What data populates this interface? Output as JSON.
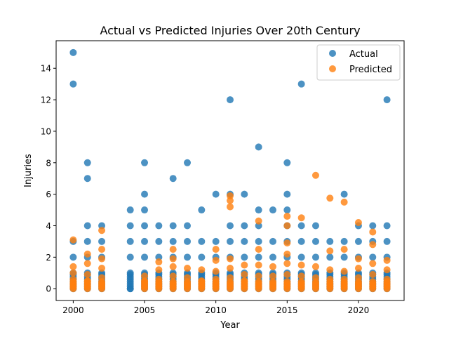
{
  "chart_data": {
    "type": "scatter",
    "title": "Actual vs Predicted Injuries Over 20th Century",
    "xlabel": "Year",
    "ylabel": "Injuries",
    "xlim": [
      1998.8,
      2023.2
    ],
    "ylim": [
      -0.75,
      15.75
    ],
    "xticks": [
      2000,
      2005,
      2010,
      2015,
      2020
    ],
    "yticks": [
      0,
      2,
      4,
      6,
      8,
      10,
      12,
      14
    ],
    "grid": false,
    "legend_position": "top-right",
    "series": [
      {
        "name": "Actual",
        "color": "#1f77b4",
        "points": [
          [
            2000,
            15
          ],
          [
            2000,
            13
          ],
          [
            2000,
            3
          ],
          [
            2000,
            2
          ],
          [
            2000,
            1
          ],
          [
            2001,
            8
          ],
          [
            2001,
            7
          ],
          [
            2001,
            4
          ],
          [
            2001,
            3
          ],
          [
            2001,
            2
          ],
          [
            2001,
            1
          ],
          [
            2002,
            4
          ],
          [
            2002,
            3
          ],
          [
            2002,
            2
          ],
          [
            2002,
            1
          ],
          [
            2004,
            5
          ],
          [
            2004,
            4
          ],
          [
            2004,
            3
          ],
          [
            2004,
            2
          ],
          [
            2004,
            1
          ],
          [
            2004,
            0
          ],
          [
            2005,
            8
          ],
          [
            2005,
            6
          ],
          [
            2005,
            5
          ],
          [
            2005,
            4
          ],
          [
            2005,
            3
          ],
          [
            2005,
            2
          ],
          [
            2005,
            1
          ],
          [
            2006,
            4
          ],
          [
            2006,
            3
          ],
          [
            2006,
            2
          ],
          [
            2006,
            1
          ],
          [
            2007,
            7
          ],
          [
            2007,
            4
          ],
          [
            2007,
            3
          ],
          [
            2007,
            2
          ],
          [
            2007,
            1
          ],
          [
            2008,
            8
          ],
          [
            2008,
            4
          ],
          [
            2008,
            3
          ],
          [
            2008,
            2
          ],
          [
            2008,
            1
          ],
          [
            2009,
            5
          ],
          [
            2009,
            3
          ],
          [
            2009,
            2
          ],
          [
            2009,
            1
          ],
          [
            2010,
            6
          ],
          [
            2010,
            3
          ],
          [
            2010,
            2
          ],
          [
            2010,
            1
          ],
          [
            2011,
            12
          ],
          [
            2011,
            6
          ],
          [
            2011,
            4
          ],
          [
            2011,
            3
          ],
          [
            2011,
            2
          ],
          [
            2011,
            1
          ],
          [
            2012,
            6
          ],
          [
            2012,
            4
          ],
          [
            2012,
            3
          ],
          [
            2012,
            2
          ],
          [
            2012,
            1
          ],
          [
            2013,
            9
          ],
          [
            2013,
            5
          ],
          [
            2013,
            4
          ],
          [
            2013,
            3
          ],
          [
            2013,
            2
          ],
          [
            2013,
            1
          ],
          [
            2014,
            5
          ],
          [
            2014,
            3
          ],
          [
            2014,
            2
          ],
          [
            2014,
            1
          ],
          [
            2015,
            8
          ],
          [
            2015,
            6
          ],
          [
            2015,
            5
          ],
          [
            2015,
            4
          ],
          [
            2015,
            3
          ],
          [
            2015,
            2
          ],
          [
            2015,
            1
          ],
          [
            2016,
            13
          ],
          [
            2016,
            4
          ],
          [
            2016,
            3
          ],
          [
            2016,
            2
          ],
          [
            2016,
            1
          ],
          [
            2017,
            4
          ],
          [
            2017,
            3
          ],
          [
            2017,
            2
          ],
          [
            2017,
            1
          ],
          [
            2018,
            3
          ],
          [
            2018,
            2
          ],
          [
            2018,
            1
          ],
          [
            2019,
            6
          ],
          [
            2019,
            3
          ],
          [
            2019,
            2
          ],
          [
            2019,
            1
          ],
          [
            2020,
            4
          ],
          [
            2020,
            3
          ],
          [
            2020,
            2
          ],
          [
            2020,
            1
          ],
          [
            2021,
            4
          ],
          [
            2021,
            3
          ],
          [
            2021,
            2
          ],
          [
            2021,
            1
          ],
          [
            2022,
            12
          ],
          [
            2022,
            4
          ],
          [
            2022,
            3
          ],
          [
            2022,
            2
          ],
          [
            2022,
            1
          ]
        ]
      },
      {
        "name": "Predicted",
        "color": "#ff7f0e",
        "points": [
          [
            2000,
            3.1
          ],
          [
            2000,
            1.4
          ],
          [
            2000,
            1.0
          ],
          [
            2000,
            0.6
          ],
          [
            2001,
            2.2
          ],
          [
            2001,
            1.6
          ],
          [
            2001,
            0.9
          ],
          [
            2001,
            0.5
          ],
          [
            2002,
            3.7
          ],
          [
            2002,
            2.5
          ],
          [
            2002,
            1.9
          ],
          [
            2002,
            1.3
          ],
          [
            2002,
            0.7
          ],
          [
            2005,
            0.8
          ],
          [
            2005,
            0.5
          ],
          [
            2006,
            1.7
          ],
          [
            2006,
            1.2
          ],
          [
            2006,
            0.6
          ],
          [
            2007,
            2.5
          ],
          [
            2007,
            1.9
          ],
          [
            2007,
            1.4
          ],
          [
            2007,
            0.8
          ],
          [
            2008,
            1.3
          ],
          [
            2008,
            0.7
          ],
          [
            2009,
            1.2
          ],
          [
            2009,
            0.5
          ],
          [
            2010,
            2.5
          ],
          [
            2010,
            1.8
          ],
          [
            2010,
            1.1
          ],
          [
            2010,
            0.6
          ],
          [
            2011,
            5.9
          ],
          [
            2011,
            5.6
          ],
          [
            2011,
            5.2
          ],
          [
            2011,
            1.9
          ],
          [
            2011,
            1.3
          ],
          [
            2011,
            0.7
          ],
          [
            2012,
            1.5
          ],
          [
            2012,
            0.9
          ],
          [
            2012,
            0.5
          ],
          [
            2013,
            4.3
          ],
          [
            2013,
            2.5
          ],
          [
            2013,
            1.5
          ],
          [
            2013,
            0.8
          ],
          [
            2014,
            1.4
          ],
          [
            2014,
            0.8
          ],
          [
            2015,
            4.6
          ],
          [
            2015,
            4.0
          ],
          [
            2015,
            2.9
          ],
          [
            2015,
            2.2
          ],
          [
            2015,
            1.6
          ],
          [
            2015,
            0.9
          ],
          [
            2016,
            4.5
          ],
          [
            2016,
            1.5
          ],
          [
            2016,
            0.8
          ],
          [
            2017,
            7.2
          ],
          [
            2017,
            1.4
          ],
          [
            2017,
            0.7
          ],
          [
            2018,
            5.75
          ],
          [
            2018,
            2.4
          ],
          [
            2018,
            1.2
          ],
          [
            2018,
            0.6
          ],
          [
            2019,
            5.5
          ],
          [
            2019,
            2.5
          ],
          [
            2019,
            1.1
          ],
          [
            2019,
            0.6
          ],
          [
            2020,
            4.2
          ],
          [
            2020,
            1.9
          ],
          [
            2020,
            1.3
          ],
          [
            2020,
            0.7
          ],
          [
            2021,
            3.6
          ],
          [
            2021,
            2.8
          ],
          [
            2021,
            1.6
          ],
          [
            2021,
            0.9
          ],
          [
            2022,
            1.8
          ],
          [
            2022,
            1.2
          ],
          [
            2022,
            0.6
          ]
        ]
      }
    ]
  }
}
